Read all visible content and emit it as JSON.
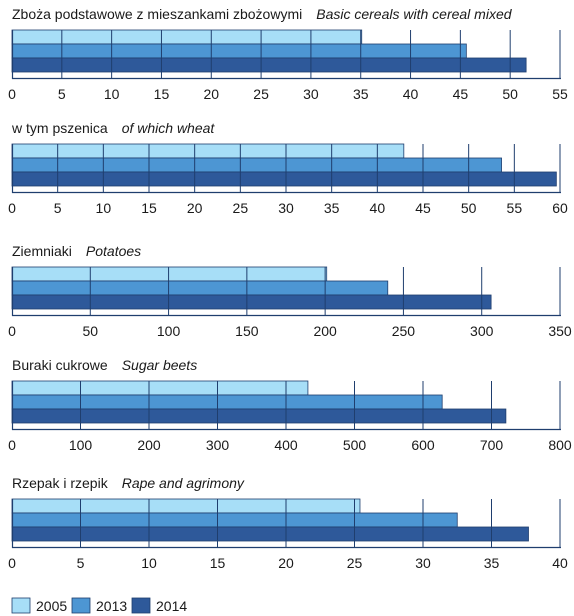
{
  "chart_data": [
    {
      "type": "bar",
      "orientation": "horizontal",
      "title": "Zboża podstawowe z mieszankami zbożowymi",
      "subtitle": "Basic cereals with cereal mixed",
      "categories": [
        "2005",
        "2013",
        "2014"
      ],
      "values": [
        35.1,
        45.6,
        51.6
      ],
      "xlim": [
        0,
        55
      ],
      "ticks": [
        "0",
        "5",
        "10",
        "15",
        "20",
        "25",
        "30",
        "35",
        "40",
        "45",
        "50",
        "55"
      ]
    },
    {
      "type": "bar",
      "orientation": "horizontal",
      "title": "w tym pszenica",
      "subtitle": "of which wheat",
      "categories": [
        "2005",
        "2013",
        "2014"
      ],
      "values": [
        42.9,
        53.6,
        59.6
      ],
      "xlim": [
        0,
        60
      ],
      "ticks": [
        "0",
        "5",
        "10",
        "15",
        "20",
        "25",
        "30",
        "35",
        "40",
        "45",
        "50",
        "55",
        "60"
      ]
    },
    {
      "type": "bar",
      "orientation": "horizontal",
      "title": "Ziemniaki",
      "subtitle": "Potatoes",
      "categories": [
        "2005",
        "2013",
        "2014"
      ],
      "values": [
        201,
        240,
        306
      ],
      "xlim": [
        0,
        350
      ],
      "ticks": [
        "0",
        "50",
        "100",
        "150",
        "200",
        "250",
        "300",
        "350"
      ]
    },
    {
      "type": "bar",
      "orientation": "horizontal",
      "title": "Buraki cukrowe",
      "subtitle": "Sugar beets",
      "categories": [
        "2005",
        "2013",
        "2014"
      ],
      "values": [
        432,
        628,
        721
      ],
      "xlim": [
        0,
        800
      ],
      "ticks": [
        "0",
        "100",
        "200",
        "300",
        "400",
        "500",
        "600",
        "700",
        "800"
      ]
    },
    {
      "type": "bar",
      "orientation": "horizontal",
      "title": "Rzepak i rzepik",
      "subtitle": "Rape and agrimony",
      "categories": [
        "2005",
        "2013",
        "2014"
      ],
      "values": [
        25.4,
        32.5,
        37.7
      ],
      "xlim": [
        0,
        40
      ],
      "ticks": [
        "0",
        "5",
        "10",
        "15",
        "20",
        "25",
        "30",
        "35",
        "40"
      ]
    }
  ],
  "legend": {
    "items": [
      {
        "label": "2005",
        "color": "#a7def7"
      },
      {
        "label": "2013",
        "color": "#4d96d3"
      },
      {
        "label": "2014",
        "color": "#2e599a"
      }
    ]
  },
  "colors": {
    "series": [
      "#a7def7",
      "#4d96d3",
      "#2e599a"
    ],
    "bar_stroke": "#1f3e6e",
    "axis": "#1f3e6e",
    "text": "#1a1a1a"
  }
}
